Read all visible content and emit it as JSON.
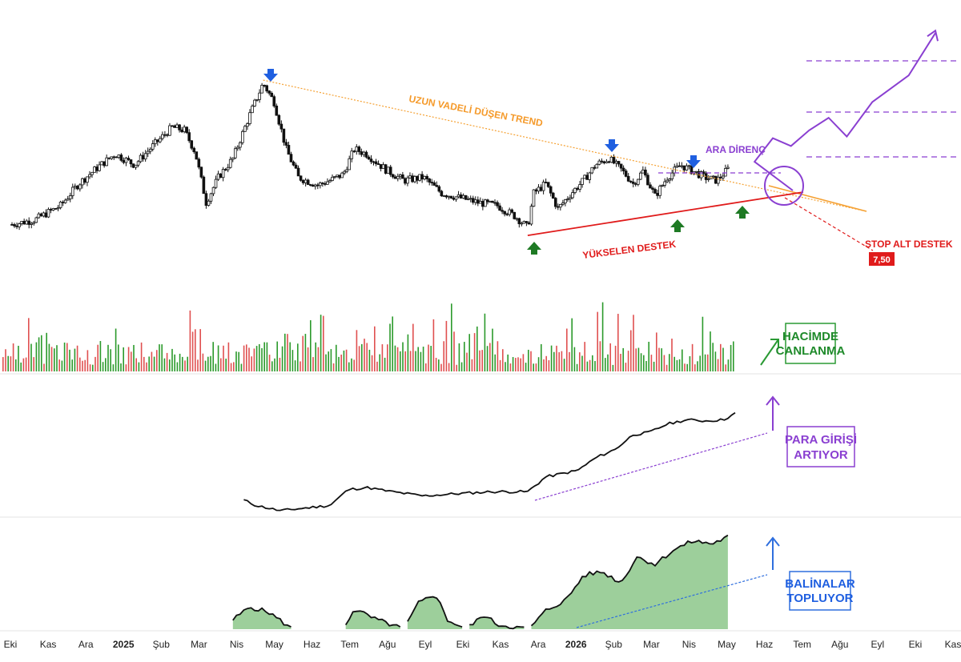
{
  "chart_data": {
    "type": "line",
    "panels": [
      "price-candles",
      "volume",
      "money-flow",
      "whale-accumulation"
    ],
    "x_axis": {
      "ticks": [
        "Eki",
        "Kas",
        "Ara",
        "2025",
        "Şub",
        "Mar",
        "Nis",
        "May",
        "Haz",
        "Tem",
        "Ağu",
        "Eyl",
        "Eki",
        "Kas",
        "Ara",
        "2026",
        "Şub",
        "Mar",
        "Nis",
        "May",
        "Haz",
        "Tem",
        "Ağu",
        "Eyl",
        "Eki",
        "Kas"
      ],
      "year_ticks": [
        "2025",
        "2026"
      ]
    },
    "price_series": [
      [
        "2024-10-01",
        0.1
      ],
      [
        "2024-10-20",
        0.13
      ],
      [
        "2024-11-10",
        0.22
      ],
      [
        "2024-11-25",
        0.36
      ],
      [
        "2024-12-10",
        0.46
      ],
      [
        "2024-12-25",
        0.55
      ],
      [
        "2025-01-10",
        0.48
      ],
      [
        "2025-01-25",
        0.6
      ],
      [
        "2025-02-10",
        0.72
      ],
      [
        "2025-02-20",
        0.7
      ],
      [
        "2025-03-01",
        0.56
      ],
      [
        "2025-03-10",
        0.24
      ],
      [
        "2025-03-20",
        0.4
      ],
      [
        "2025-04-01",
        0.52
      ],
      [
        "2025-04-15",
        0.8
      ],
      [
        "2025-04-26",
        1.0
      ],
      [
        "2025-05-05",
        0.88
      ],
      [
        "2025-05-15",
        0.58
      ],
      [
        "2025-05-25",
        0.4
      ],
      [
        "2025-06-10",
        0.35
      ],
      [
        "2025-06-20",
        0.38
      ],
      [
        "2025-07-01",
        0.42
      ],
      [
        "2025-07-10",
        0.58
      ],
      [
        "2025-07-20",
        0.55
      ],
      [
        "2025-08-05",
        0.45
      ],
      [
        "2025-08-20",
        0.38
      ],
      [
        "2025-09-05",
        0.4
      ],
      [
        "2025-09-20",
        0.3
      ],
      [
        "2025-10-05",
        0.27
      ],
      [
        "2025-10-20",
        0.24
      ],
      [
        "2025-11-05",
        0.22
      ],
      [
        "2025-11-20",
        0.15
      ],
      [
        "2025-11-30",
        0.08
      ],
      [
        "2025-12-05",
        0.3
      ],
      [
        "2025-12-15",
        0.36
      ],
      [
        "2025-12-25",
        0.2
      ],
      [
        "2026-01-05",
        0.3
      ],
      [
        "2026-01-15",
        0.38
      ],
      [
        "2026-01-25",
        0.48
      ],
      [
        "2026-02-05",
        0.52
      ],
      [
        "2026-02-15",
        0.45
      ],
      [
        "2026-02-25",
        0.36
      ],
      [
        "2026-03-05",
        0.44
      ],
      [
        "2026-03-15",
        0.28
      ],
      [
        "2026-03-25",
        0.4
      ],
      [
        "2026-04-05",
        0.48
      ],
      [
        "2026-04-15",
        0.44
      ],
      [
        "2026-04-25",
        0.4
      ],
      [
        "2026-05-05",
        0.38
      ],
      [
        "2026-05-15",
        0.46
      ]
    ],
    "projection_series": [
      [
        "2026-06-05",
        0.5
      ],
      [
        "2026-06-20",
        0.65
      ],
      [
        "2026-07-05",
        0.6
      ],
      [
        "2026-07-20",
        0.7
      ],
      [
        "2026-08-05",
        0.78
      ],
      [
        "2026-08-20",
        0.66
      ],
      [
        "2026-09-10",
        0.88
      ],
      [
        "2026-10-10",
        1.05
      ],
      [
        "2026-11-01",
        1.32
      ]
    ],
    "volume_series": [],
    "money_flow_series": [
      [
        "2025-04-10",
        0.1
      ],
      [
        "2025-04-20",
        0.05
      ],
      [
        "2025-05-10",
        0.0
      ],
      [
        "2025-06-20",
        0.05
      ],
      [
        "2025-07-05",
        0.2
      ],
      [
        "2025-07-20",
        0.22
      ],
      [
        "2025-08-10",
        0.18
      ],
      [
        "2025-09-05",
        0.14
      ],
      [
        "2025-10-01",
        0.16
      ],
      [
        "2025-11-01",
        0.18
      ],
      [
        "2025-11-30",
        0.18
      ],
      [
        "2025-12-15",
        0.32
      ],
      [
        "2026-01-10",
        0.38
      ],
      [
        "2026-01-25",
        0.5
      ],
      [
        "2026-02-10",
        0.58
      ],
      [
        "2026-02-25",
        0.72
      ],
      [
        "2026-03-10",
        0.74
      ],
      [
        "2026-03-25",
        0.82
      ],
      [
        "2026-04-10",
        0.86
      ],
      [
        "2026-04-25",
        0.85
      ],
      [
        "2026-05-10",
        0.86
      ],
      [
        "2026-05-20",
        0.92
      ]
    ],
    "whale_series": [
      [
        "2025-04-01",
        0.1
      ],
      [
        "2025-04-15",
        0.24
      ],
      [
        "2025-05-01",
        0.18
      ],
      [
        "2025-05-20",
        0.0
      ],
      [
        "2025-07-01",
        0.0
      ],
      [
        "2025-07-10",
        0.22
      ],
      [
        "2025-07-25",
        0.12
      ],
      [
        "2025-08-20",
        0.0
      ],
      [
        "2025-09-01",
        0.28
      ],
      [
        "2025-09-15",
        0.38
      ],
      [
        "2025-09-25",
        0.1
      ],
      [
        "2025-10-10",
        0.0
      ],
      [
        "2025-10-25",
        0.15
      ],
      [
        "2025-11-05",
        0.05
      ],
      [
        "2025-12-01",
        0.0
      ],
      [
        "2025-12-15",
        0.2
      ],
      [
        "2026-01-01",
        0.32
      ],
      [
        "2026-01-15",
        0.58
      ],
      [
        "2026-01-30",
        0.62
      ],
      [
        "2026-02-15",
        0.5
      ],
      [
        "2026-02-28",
        0.78
      ],
      [
        "2026-03-15",
        0.7
      ],
      [
        "2026-03-30",
        0.85
      ],
      [
        "2026-04-15",
        0.95
      ],
      [
        "2026-05-01",
        0.92
      ],
      [
        "2026-05-15",
        1.0
      ]
    ],
    "levels": {
      "stop_label": "7,50"
    },
    "colors": {
      "up": "#1e8a2a",
      "down": "#e03030",
      "trend": "#f5a133",
      "support": "#e01b1b",
      "resistance": "#8a3fd1",
      "projection": "#8a3fd1",
      "flow": "#8a3fd1",
      "whale": "#2f6fde",
      "whale_fill": "#7cbf7a",
      "arrow_marker": "#1f5fe0"
    }
  },
  "annotations": {
    "trend_label": "UZUN VADELİ DÜŞEN TREND",
    "support_label": "YÜKSELEN DESTEK",
    "resistance_label": "ARA DİRENÇ",
    "stop_label_title": "STOP ALT DESTEK",
    "stop_value": "7,50",
    "volume_box": [
      "HACİMDE",
      "CANLANMA"
    ],
    "flow_box": [
      "PARA GİRİŞİ",
      "ARTIYOR"
    ],
    "whale_box": [
      "BALİNALAR",
      "TOPLUYOR"
    ]
  }
}
